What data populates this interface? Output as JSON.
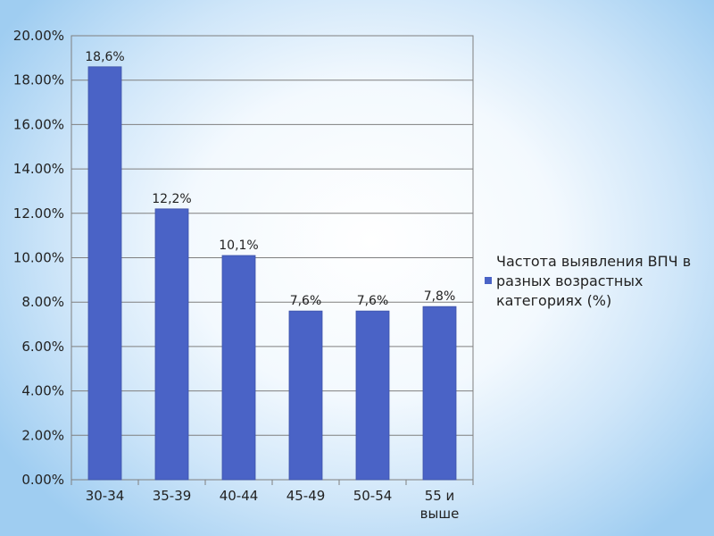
{
  "chart_data": {
    "type": "bar",
    "categories": [
      "30-34",
      "35-39",
      "40-44",
      "45-49",
      "50-54",
      "55 и выше"
    ],
    "series": [
      {
        "name": "Частота выявления ВПЧ в разных возрастных категориях (%)",
        "values": [
          18.6,
          12.2,
          10.1,
          7.6,
          7.6,
          7.8
        ],
        "data_labels": [
          "18,6%",
          "12,2%",
          "10,1%",
          "7,6%",
          "7,6%",
          "7,8%"
        ],
        "color": "#4a63c6"
      }
    ],
    "yticks": [
      "0.00%",
      "2.00%",
      "4.00%",
      "6.00%",
      "8.00%",
      "10.00%",
      "12.00%",
      "14.00%",
      "16.00%",
      "18.00%",
      "20.00%"
    ],
    "ylim": [
      0,
      20
    ],
    "grid": true,
    "legend_position": "right",
    "title": "",
    "xlabel": "",
    "ylabel": ""
  }
}
